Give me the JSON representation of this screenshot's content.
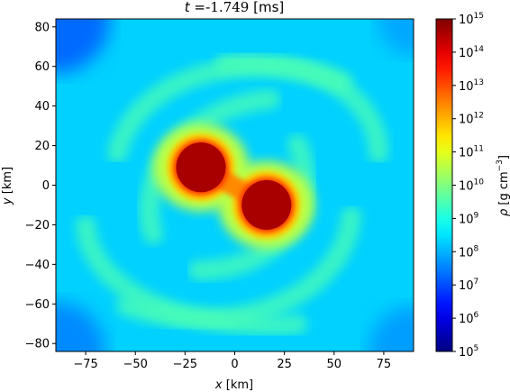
{
  "chart_data": {
    "type": "heatmap",
    "title": "t =-1.749 [ms]",
    "title_parts": {
      "var": "t",
      "eq": " =-",
      "value": "1.749",
      "unit": " [ms]"
    },
    "xlabel": {
      "var": "x",
      "unit": " [km]"
    },
    "ylabel": {
      "var": "y",
      "unit": " [km]"
    },
    "xlim": [
      -90,
      90
    ],
    "ylim": [
      -84,
      84
    ],
    "xticks": [
      -75,
      -50,
      -25,
      0,
      25,
      50,
      75
    ],
    "xtick_labels": [
      "−75",
      "−50",
      "−25",
      "0",
      "25",
      "50",
      "75"
    ],
    "yticks": [
      -80,
      -60,
      -40,
      -20,
      0,
      20,
      40,
      60,
      80
    ],
    "ytick_labels": [
      "−80",
      "−60",
      "−40",
      "−20",
      "0",
      "20",
      "40",
      "60",
      "80"
    ],
    "colorbar": {
      "label": {
        "var": "ρ",
        "unit": " [g cm",
        "exp": "−3",
        "close": "]"
      },
      "scale": "log",
      "colormap": "jet",
      "range_log10": [
        5,
        15
      ],
      "ticks_log10": [
        5,
        6,
        7,
        8,
        9,
        10,
        11,
        12,
        13,
        14,
        15
      ],
      "tick_base": "10"
    },
    "background_log10_density": 8.3,
    "cores": [
      {
        "center": [
          -17,
          9
        ],
        "radius_km": 12.5,
        "log10_density": 14.6
      },
      {
        "center": [
          16,
          -10
        ],
        "radius_km": 12.5,
        "log10_density": 14.6
      }
    ],
    "envelope_log10_density": 11.8,
    "spiral_arms_log10_density": 9.5
  }
}
